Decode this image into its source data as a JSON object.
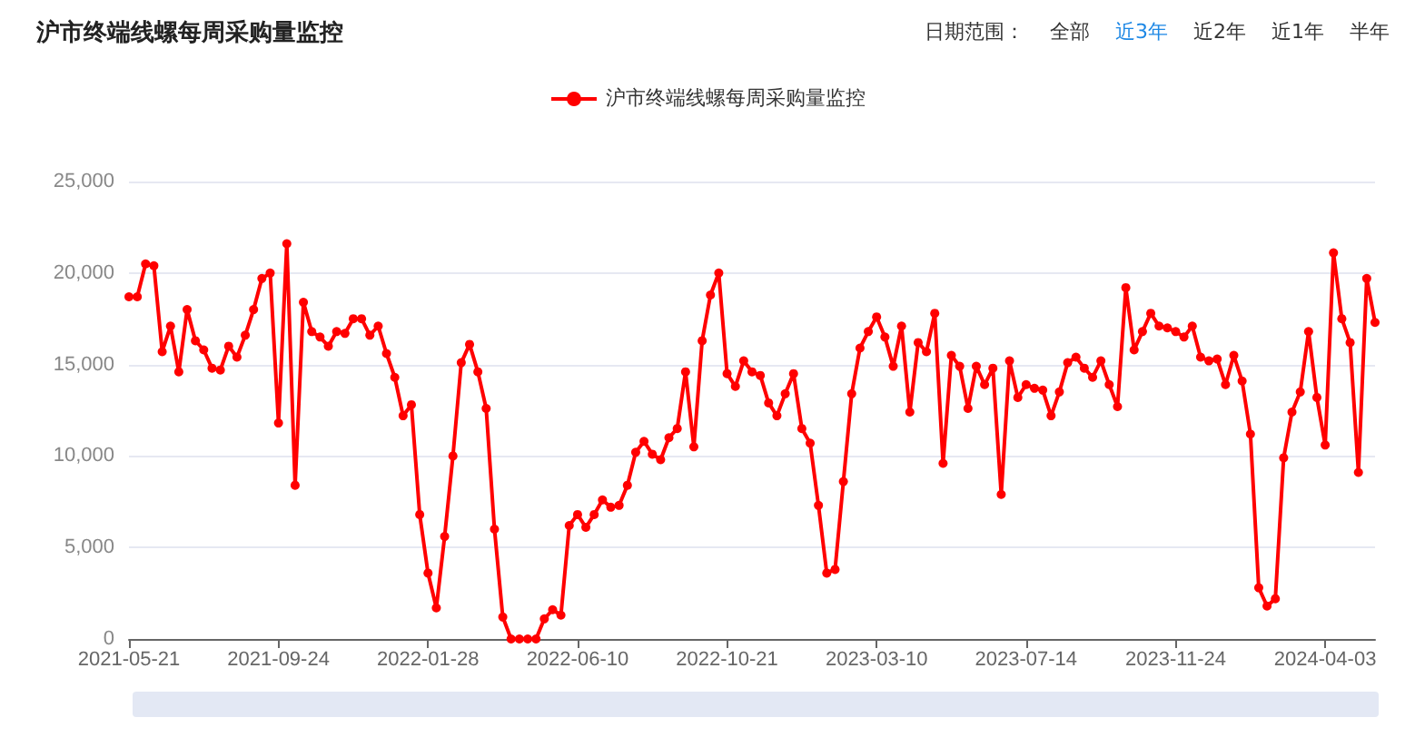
{
  "chart_data": {
    "type": "line",
    "title": "沪市终端线螺每周采购量监控",
    "annotations": [
      "日期范围：",
      "全部",
      "近3年",
      "近2年",
      "近1年",
      "半年"
    ],
    "categories": [
      "2021-05-21",
      null,
      null,
      null,
      null,
      null,
      null,
      null,
      null,
      null,
      null,
      null,
      null,
      null,
      null,
      null,
      null,
      null,
      "2021-09-24",
      null,
      null,
      null,
      null,
      null,
      null,
      null,
      null,
      null,
      null,
      null,
      null,
      null,
      null,
      null,
      null,
      null,
      "2022-01-28",
      null,
      null,
      null,
      null,
      null,
      null,
      null,
      null,
      null,
      null,
      null,
      null,
      null,
      null,
      null,
      null,
      null,
      "2022-06-10",
      null,
      null,
      null,
      null,
      null,
      null,
      null,
      null,
      null,
      null,
      null,
      null,
      null,
      null,
      null,
      null,
      null,
      "2022-10-21",
      null,
      null,
      null,
      null,
      null,
      null,
      null,
      null,
      null,
      null,
      null,
      null,
      null,
      null,
      null,
      null,
      null,
      "2023-03-10",
      null,
      null,
      null,
      null,
      null,
      null,
      null,
      null,
      null,
      null,
      null,
      null,
      null,
      null,
      null,
      null,
      null,
      "2023-07-14",
      null,
      null,
      null,
      null,
      null,
      null,
      null,
      null,
      null,
      null,
      null,
      null,
      null,
      null,
      null,
      null,
      null,
      "2023-11-24",
      null,
      null,
      null,
      null,
      null,
      null,
      null,
      null,
      null,
      null,
      null,
      null,
      null,
      null,
      null,
      null,
      null,
      "2024-04-03",
      null,
      null,
      null,
      null,
      null,
      null
    ],
    "series": [
      {
        "name": "沪市终端线螺每周采购量监控",
        "color": "#ff0000",
        "values": [
          18700,
          18700,
          20500,
          20400,
          15700,
          17100,
          14600,
          18000,
          16300,
          15800,
          14800,
          14700,
          16000,
          15400,
          16600,
          18000,
          19700,
          20000,
          11800,
          21600,
          8400,
          18400,
          16800,
          16500,
          16000,
          16800,
          16700,
          17500,
          17500,
          16600,
          17100,
          15600,
          14300,
          12200,
          12800,
          6800,
          3600,
          1700,
          5600,
          10000,
          15100,
          16100,
          14600,
          12600,
          6000,
          1200,
          0,
          0,
          0,
          0,
          1100,
          1600,
          1300,
          6200,
          6800,
          6100,
          6800,
          7600,
          7200,
          7300,
          8400,
          10200,
          10800,
          10100,
          9800,
          11000,
          11500,
          14600,
          10500,
          16300,
          18800,
          20000,
          14500,
          13800,
          15200,
          14600,
          14400,
          12900,
          12200,
          13400,
          14500,
          11500,
          10700,
          7300,
          3600,
          3800,
          8600,
          13400,
          15900,
          16800,
          17600,
          16500,
          14900,
          17100,
          12400,
          16200,
          15700,
          17800,
          9600,
          15500,
          14900,
          12600,
          14900,
          13900,
          14800,
          7900,
          15200,
          13200,
          13900,
          13700,
          13600,
          12200,
          13500,
          15100,
          15400,
          14800,
          14300,
          15200,
          13900,
          12700,
          19200,
          15800,
          16800,
          17800,
          17100,
          17000,
          16800,
          16500,
          17100,
          15400,
          15200,
          15300,
          13900,
          15500,
          14100,
          11200,
          2800,
          1800,
          2200,
          9900,
          12400,
          13500,
          16800,
          13200,
          10600,
          21100,
          17500,
          16200,
          9100,
          19700,
          17300
        ]
      }
    ],
    "ylim": [
      0,
      25000
    ],
    "yticks": [
      0,
      {
        "value": 5000,
        "label": "5,000"
      },
      {
        "value": 10000,
        "label": "10,000"
      },
      {
        "value": 15000,
        "label": "15,000"
      },
      {
        "value": 20000,
        "label": "20,000"
      },
      {
        "value": 25000,
        "label": "25,000"
      }
    ],
    "grid": "y",
    "legend": "top",
    "marker": "circle",
    "line_style": "solid"
  }
}
